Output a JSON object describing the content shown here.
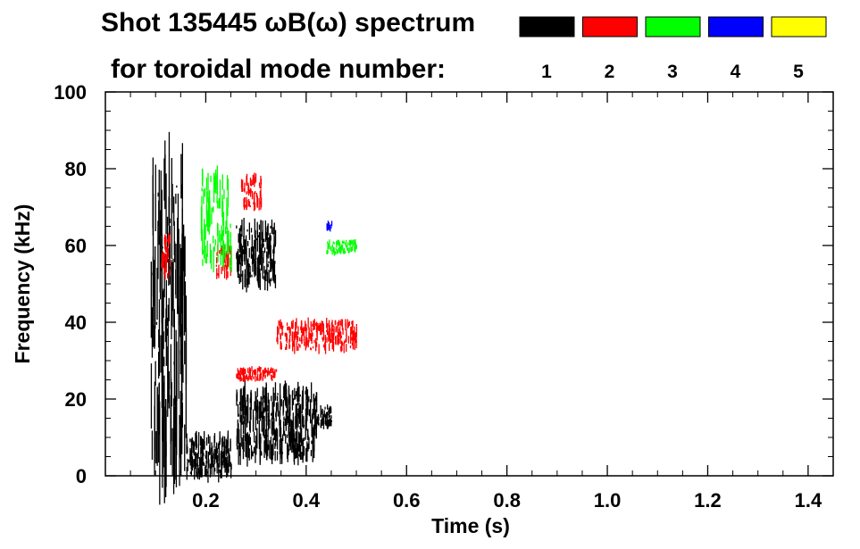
{
  "chart_data": {
    "type": "heatmap",
    "title": "Shot 135445 ωB(ω) spectrum",
    "subtitle": "for toroidal mode number:",
    "xlabel": "Time (s)",
    "ylabel": "Frequency (kHz)",
    "xlim": [
      0.0,
      1.45
    ],
    "ylim": [
      0,
      100
    ],
    "x_ticks": [
      "0.2",
      "0.4",
      "0.6",
      "0.8",
      "1.0",
      "1.2",
      "1.4"
    ],
    "x_tick_values": [
      0.2,
      0.4,
      0.6,
      0.8,
      1.0,
      1.2,
      1.4
    ],
    "y_ticks": [
      "0",
      "20",
      "40",
      "60",
      "80",
      "100"
    ],
    "y_tick_values": [
      0,
      20,
      40,
      60,
      80,
      100
    ],
    "grid": false,
    "legend_placement": "top-right",
    "legend": [
      {
        "n": "1",
        "color": "#000000"
      },
      {
        "n": "2",
        "color": "#ff0000"
      },
      {
        "n": "3",
        "color": "#00ff00"
      },
      {
        "n": "4",
        "color": "#0000ff"
      },
      {
        "n": "5",
        "color": "#ffff00"
      }
    ],
    "features": [
      {
        "n": 1,
        "t": [
          0.09,
          0.16
        ],
        "f": [
          5,
          80
        ]
      },
      {
        "n": 1,
        "t": [
          0.16,
          0.25
        ],
        "f": [
          0,
          10
        ]
      },
      {
        "n": 1,
        "t": [
          0.26,
          0.34
        ],
        "f": [
          50,
          65
        ]
      },
      {
        "n": 1,
        "t": [
          0.26,
          0.42
        ],
        "f": [
          5,
          22
        ]
      },
      {
        "n": 1,
        "t": [
          0.42,
          0.45
        ],
        "f": [
          13,
          18
        ]
      },
      {
        "n": 2,
        "t": [
          0.27,
          0.31
        ],
        "f": [
          70,
          78
        ]
      },
      {
        "n": 2,
        "t": [
          0.11,
          0.13
        ],
        "f": [
          52,
          62
        ]
      },
      {
        "n": 2,
        "t": [
          0.22,
          0.25
        ],
        "f": [
          52,
          60
        ]
      },
      {
        "n": 2,
        "t": [
          0.26,
          0.34
        ],
        "f": [
          25,
          28
        ]
      },
      {
        "n": 2,
        "t": [
          0.34,
          0.5
        ],
        "f": [
          33,
          40
        ]
      },
      {
        "n": 3,
        "t": [
          0.19,
          0.25
        ],
        "f": [
          55,
          78
        ]
      },
      {
        "n": 3,
        "t": [
          0.44,
          0.5
        ],
        "f": [
          58,
          61
        ]
      },
      {
        "n": 4,
        "t": [
          0.44,
          0.45
        ],
        "f": [
          64,
          66
        ]
      }
    ]
  }
}
